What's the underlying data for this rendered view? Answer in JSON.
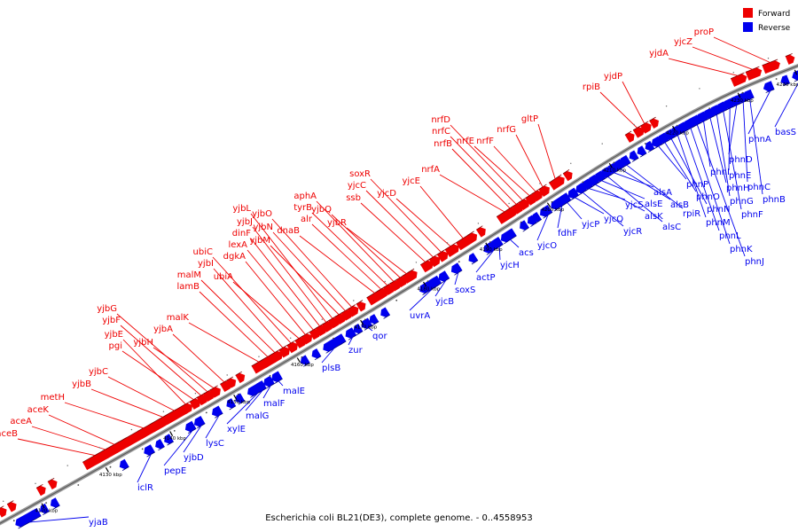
{
  "caption": "Escherichia coli BL21(DE3), complete genome. - 0..4558953",
  "legend": [
    {
      "label": "Forward",
      "color": "#ee0000"
    },
    {
      "label": "Reverse",
      "color": "#0000ee"
    }
  ],
  "colors": {
    "forward": "#ee0000",
    "reverse": "#0000ee",
    "axis": "#999999"
  },
  "ticks": [
    "4120 kbp",
    "4130 kbp",
    "4140 kbp",
    "4150 kbp",
    "4160 kbp",
    "4170 kbp",
    "4180 kbp",
    "4190 kbp",
    "4200 kbp",
    "4210 kbp",
    "4220 kbp",
    "4230 kbp",
    "4240 kbp"
  ],
  "forward_genes": [
    "aceB",
    "aceA",
    "aceK",
    "metH",
    "yjbB",
    "yjbC",
    "yjbE",
    "pgi",
    "yjbF",
    "yjbG",
    "yjbH",
    "yjbA",
    "malK",
    "lamB",
    "malM",
    "yjbI",
    "ubiC",
    "ubiA",
    "dgkA",
    "lexA",
    "dinF",
    "yjbJ",
    "yjbL",
    "yjbM",
    "yjbN",
    "yjbO",
    "dnaB",
    "alr",
    "tyrB",
    "aphA",
    "yjbQ",
    "yjbR",
    "ssb",
    "yjcC",
    "soxR",
    "yjcD",
    "yjcE",
    "nrfA",
    "nrfB",
    "nrfC",
    "nrfD",
    "nrfE",
    "nrfF",
    "nrfG",
    "gltP",
    "rpiB",
    "yjdP",
    "yjdA",
    "yjcZ",
    "proP"
  ],
  "reverse_genes": [
    "yjaB",
    "iclR",
    "pepE",
    "yjbD",
    "lysC",
    "xylE",
    "malG",
    "malF",
    "malE",
    "plsB",
    "zur",
    "qor",
    "uvrA",
    "yjcB",
    "soxS",
    "actP",
    "yjcH",
    "acs",
    "yjcO",
    "fdhF",
    "yjcP",
    "yjcQ",
    "yjcR",
    "yjcS",
    "alsK",
    "alsE",
    "alsC",
    "alsA",
    "alsB",
    "rpiR",
    "phnP",
    "phnO",
    "phnN",
    "phnM",
    "phnL",
    "phnK",
    "phnJ",
    "phnI",
    "phnH",
    "phnG",
    "phnF",
    "phnE",
    "phnD",
    "phnC",
    "phnB",
    "phnA",
    "basS"
  ]
}
